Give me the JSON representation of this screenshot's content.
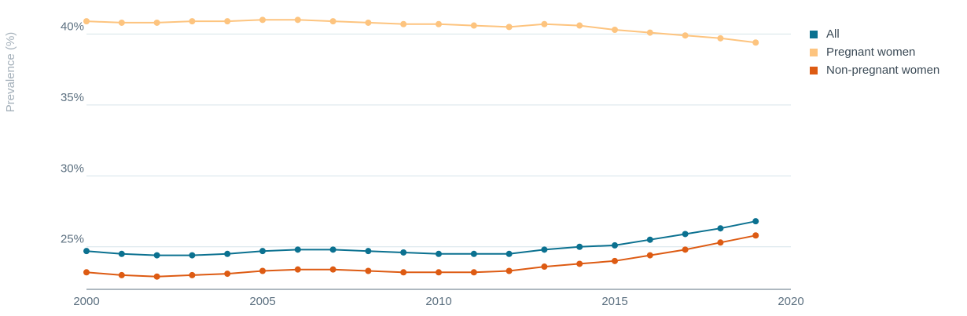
{
  "chart_data": {
    "type": "line",
    "title": "",
    "xlabel": "",
    "ylabel": "Prevalence (%)",
    "x": [
      2000,
      2001,
      2002,
      2003,
      2004,
      2005,
      2006,
      2007,
      2008,
      2009,
      2010,
      2011,
      2012,
      2013,
      2014,
      2015,
      2016,
      2017,
      2018,
      2019
    ],
    "xlim": [
      2000,
      2020
    ],
    "x_ticks": [
      2000,
      2005,
      2010,
      2015,
      2020
    ],
    "x_tick_labels": [
      "2000",
      "2005",
      "2010",
      "2015",
      "2020"
    ],
    "ylim": [
      22,
      42.4
    ],
    "y_ticks": [
      25,
      30,
      35,
      40
    ],
    "y_tick_labels": [
      "25%",
      "30%",
      "35%",
      "40%"
    ],
    "grid": true,
    "legend_position": "top-right",
    "series": [
      {
        "name": "All",
        "color": "#0b7190",
        "values": [
          24.7,
          24.5,
          24.4,
          24.4,
          24.5,
          24.7,
          24.8,
          24.8,
          24.7,
          24.6,
          24.5,
          24.5,
          24.5,
          24.8,
          25.0,
          25.1,
          25.5,
          25.9,
          26.3,
          26.8
        ]
      },
      {
        "name": "Pregnant women",
        "color": "#fdc47f",
        "values": [
          40.9,
          40.8,
          40.8,
          40.9,
          40.9,
          41.0,
          41.0,
          40.9,
          40.8,
          40.7,
          40.7,
          40.6,
          40.5,
          40.7,
          40.6,
          40.3,
          40.1,
          39.9,
          39.7,
          39.4
        ]
      },
      {
        "name": "Non-pregnant women",
        "color": "#dd5b13",
        "values": [
          23.2,
          23.0,
          22.9,
          23.0,
          23.1,
          23.3,
          23.4,
          23.4,
          23.3,
          23.2,
          23.2,
          23.2,
          23.3,
          23.6,
          23.8,
          24.0,
          24.4,
          24.8,
          25.3,
          25.8
        ]
      }
    ]
  }
}
